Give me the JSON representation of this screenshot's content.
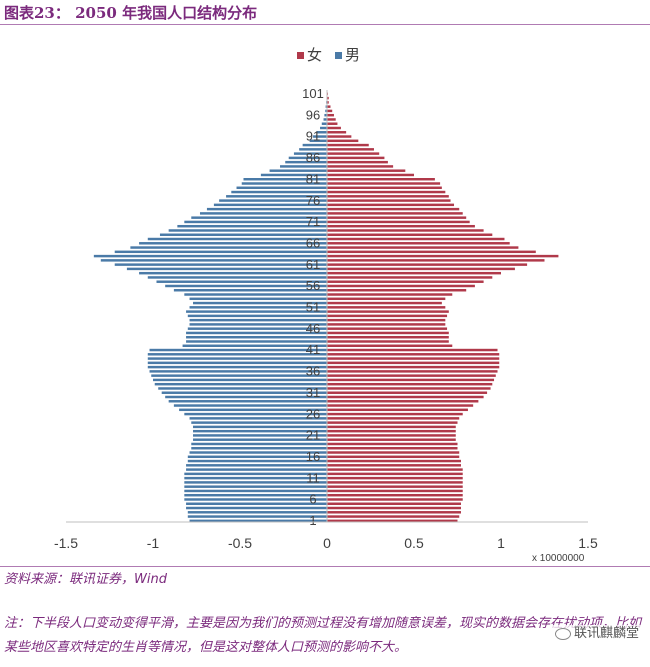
{
  "header": {
    "title": "图表23：  2050 年我国人口结构分布"
  },
  "footer": {
    "source": "资料来源：联讯证券，Wind",
    "note": "注：下半段人口变动变得平滑，主要是因为我们的预测过程没有增加随意误差，现实的数据会存在扰动项，比如某些地区喜欢特定的生肖等情况，但是这对整体人口预测的影响不大。",
    "watermark": "联讯麒麟堂"
  },
  "colors": {
    "female": "#b0394a",
    "male": "#4a7aa7",
    "axis": "#bfbfbf",
    "text": "#404040"
  },
  "chart_data": {
    "type": "bar",
    "orientation": "horizontal-pyramid",
    "xlim": [
      -1.5,
      1.5
    ],
    "x_ticks": [
      "-1.5",
      "-1",
      "-0.5",
      "0",
      "0.5",
      "1",
      "1.5"
    ],
    "x_tick_values": [
      -1.5,
      -1,
      -0.5,
      0,
      0.5,
      1,
      1.5
    ],
    "x_scale_label": "x 10000000",
    "y_tick_labels": [
      "1",
      "6",
      "11",
      "16",
      "21",
      "26",
      "31",
      "36",
      "41",
      "46",
      "51",
      "56",
      "61",
      "66",
      "71",
      "76",
      "81",
      "86",
      "91",
      "96",
      "101"
    ],
    "y_tick_ages": [
      1,
      6,
      11,
      16,
      21,
      26,
      31,
      36,
      41,
      46,
      51,
      56,
      61,
      66,
      71,
      76,
      81,
      86,
      91,
      96,
      101
    ],
    "legend_position": "top",
    "ages": [
      1,
      2,
      3,
      4,
      5,
      6,
      7,
      8,
      9,
      10,
      11,
      12,
      13,
      14,
      15,
      16,
      17,
      18,
      19,
      20,
      21,
      22,
      23,
      24,
      25,
      26,
      27,
      28,
      29,
      30,
      31,
      32,
      33,
      34,
      35,
      36,
      37,
      38,
      39,
      40,
      41,
      42,
      43,
      44,
      45,
      46,
      47,
      48,
      49,
      50,
      51,
      52,
      53,
      54,
      55,
      56,
      57,
      58,
      59,
      60,
      61,
      62,
      63,
      64,
      65,
      66,
      67,
      68,
      69,
      70,
      71,
      72,
      73,
      74,
      75,
      76,
      77,
      78,
      79,
      80,
      81,
      82,
      83,
      84,
      85,
      86,
      87,
      88,
      89,
      90,
      91,
      92,
      93,
      94,
      95,
      96,
      97,
      98,
      99,
      100,
      101
    ],
    "series": [
      {
        "name": "女",
        "values": [
          0.75,
          0.76,
          0.77,
          0.77,
          0.77,
          0.78,
          0.78,
          0.78,
          0.78,
          0.78,
          0.78,
          0.78,
          0.78,
          0.77,
          0.77,
          0.76,
          0.76,
          0.75,
          0.75,
          0.74,
          0.74,
          0.74,
          0.74,
          0.75,
          0.76,
          0.78,
          0.81,
          0.84,
          0.87,
          0.9,
          0.92,
          0.94,
          0.95,
          0.96,
          0.97,
          0.98,
          0.99,
          0.99,
          0.99,
          0.99,
          0.98,
          0.72,
          0.7,
          0.7,
          0.7,
          0.69,
          0.68,
          0.68,
          0.69,
          0.7,
          0.68,
          0.66,
          0.68,
          0.72,
          0.8,
          0.85,
          0.9,
          0.95,
          1.0,
          1.08,
          1.15,
          1.25,
          1.33,
          1.2,
          1.1,
          1.05,
          1.02,
          0.95,
          0.9,
          0.85,
          0.82,
          0.8,
          0.78,
          0.76,
          0.73,
          0.71,
          0.7,
          0.68,
          0.66,
          0.65,
          0.62,
          0.5,
          0.45,
          0.38,
          0.35,
          0.33,
          0.3,
          0.27,
          0.24,
          0.18,
          0.14,
          0.11,
          0.08,
          0.06,
          0.05,
          0.04,
          0.03,
          0.02,
          0.01,
          0.01,
          0.005
        ]
      },
      {
        "name": "男",
        "values": [
          -0.79,
          -0.8,
          -0.8,
          -0.81,
          -0.81,
          -0.82,
          -0.82,
          -0.82,
          -0.82,
          -0.82,
          -0.82,
          -0.82,
          -0.81,
          -0.81,
          -0.8,
          -0.8,
          -0.79,
          -0.78,
          -0.78,
          -0.77,
          -0.77,
          -0.77,
          -0.77,
          -0.78,
          -0.79,
          -0.82,
          -0.85,
          -0.88,
          -0.91,
          -0.93,
          -0.95,
          -0.97,
          -0.99,
          -1.0,
          -1.01,
          -1.02,
          -1.03,
          -1.03,
          -1.03,
          -1.03,
          -1.02,
          -0.83,
          -0.81,
          -0.81,
          -0.81,
          -0.8,
          -0.79,
          -0.79,
          -0.8,
          -0.81,
          -0.79,
          -0.77,
          -0.79,
          -0.82,
          -0.88,
          -0.93,
          -0.98,
          -1.03,
          -1.08,
          -1.15,
          -1.22,
          -1.3,
          -1.34,
          -1.22,
          -1.13,
          -1.08,
          -1.03,
          -0.96,
          -0.91,
          -0.86,
          -0.82,
          -0.78,
          -0.73,
          -0.69,
          -0.65,
          -0.62,
          -0.58,
          -0.55,
          -0.52,
          -0.49,
          -0.48,
          -0.38,
          -0.33,
          -0.27,
          -0.24,
          -0.22,
          -0.19,
          -0.16,
          -0.14,
          -0.1,
          -0.08,
          -0.06,
          -0.04,
          -0.03,
          -0.02,
          -0.015,
          -0.01,
          -0.008,
          -0.005,
          -0.003,
          -0.002
        ]
      }
    ]
  }
}
